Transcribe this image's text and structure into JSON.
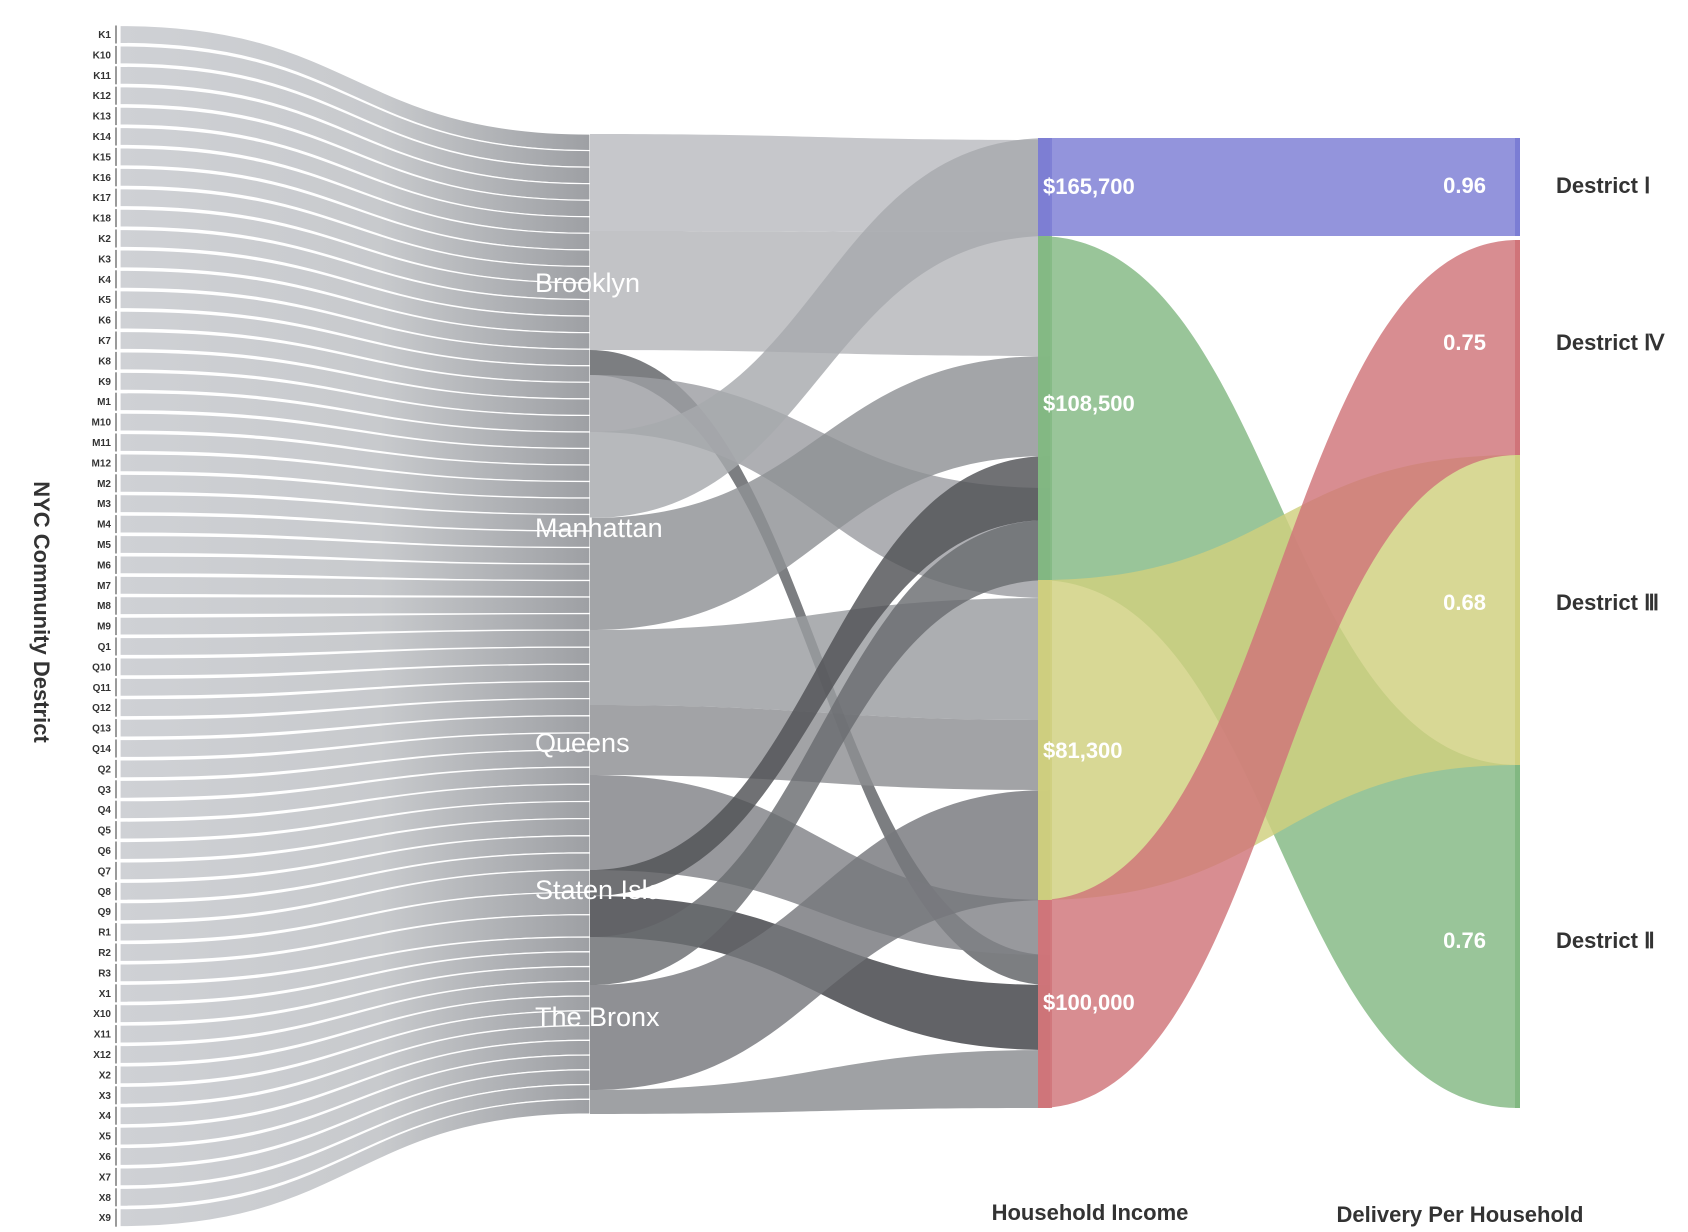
{
  "axis_titles": {
    "community_district": "NYC Community Destrict",
    "income": "Household Income",
    "delivery": "Delivery Per Household"
  },
  "community_districts": [
    "K1",
    "K10",
    "K11",
    "K12",
    "K13",
    "K14",
    "K15",
    "K16",
    "K17",
    "K18",
    "K2",
    "K3",
    "K4",
    "K5",
    "K6",
    "K7",
    "K8",
    "K9",
    "M1",
    "M10",
    "M11",
    "M12",
    "M2",
    "M3",
    "M4",
    "M5",
    "M6",
    "M7",
    "M8",
    "M9",
    "Q1",
    "Q10",
    "Q11",
    "Q12",
    "Q13",
    "Q14",
    "Q2",
    "Q3",
    "Q4",
    "Q5",
    "Q6",
    "Q7",
    "Q8",
    "Q9",
    "R1",
    "R2",
    "R3",
    "X1",
    "X10",
    "X11",
    "X12",
    "X2",
    "X3",
    "X4",
    "X5",
    "X6",
    "X7",
    "X8",
    "X9"
  ],
  "boroughs": [
    "Brooklyn",
    "Manhattan",
    "Queens",
    "Staten Island",
    "The Bronx"
  ],
  "income_nodes": [
    {
      "label": "$165,700",
      "color": "#7b7dd4"
    },
    {
      "label": "$108,500",
      "color": "#82b882"
    },
    {
      "label": "$81,300",
      "color": "#cfcf7e"
    },
    {
      "label": "$100,000",
      "color": "#d07479"
    }
  ],
  "delivery_nodes": [
    {
      "value": "0.96",
      "name": "Destrict Ⅰ",
      "color": "#7b7dd4"
    },
    {
      "value": "0.75",
      "name": "Destrict Ⅳ",
      "color": "#d07479"
    },
    {
      "value": "0.68",
      "name": "Destrict Ⅲ",
      "color": "#cfcf7e"
    },
    {
      "value": "0.76",
      "name": "Destrict Ⅱ",
      "color": "#82b882"
    }
  ],
  "link_colors": {
    "district_to_borough": "#c9cbcf",
    "borough_to_income": "#7a7c80"
  }
}
